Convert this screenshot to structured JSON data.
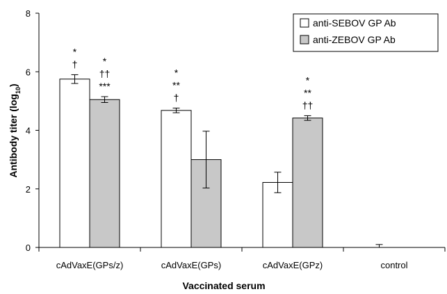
{
  "chart_data": {
    "type": "bar",
    "xlabel": "Vaccinated serum",
    "ylabel": "Antibody titer (log",
    "ylabel_subscript": "10",
    "ylabel_close": ")",
    "ylim": [
      0,
      8
    ],
    "yticks": [
      "0",
      "2",
      "4",
      "6",
      "8"
    ],
    "categories": [
      "cAdVaxE(GPs/z)",
      "cAdVaxE(GPs)",
      "cAdVaxE(GPz)",
      "control"
    ],
    "series": [
      {
        "name": "anti-SEBOV GP Ab",
        "color": "#ffffff",
        "values": [
          5.75,
          4.68,
          2.22,
          0.0
        ],
        "errors": [
          0.15,
          0.08,
          0.35,
          0.1
        ],
        "annotations": [
          [
            "*",
            "†"
          ],
          [
            "*",
            "**",
            "†"
          ],
          [],
          []
        ]
      },
      {
        "name": "anti-ZEBOV GP Ab",
        "color": "#c8c8c8",
        "values": [
          5.05,
          3.0,
          4.42,
          0.0
        ],
        "errors": [
          0.1,
          0.97,
          0.08,
          0.0
        ],
        "annotations": [
          [
            "*",
            "††",
            "***"
          ],
          [],
          [
            "*",
            "**",
            "††"
          ],
          []
        ]
      }
    ],
    "legend_position": "top-right",
    "grid": false
  }
}
